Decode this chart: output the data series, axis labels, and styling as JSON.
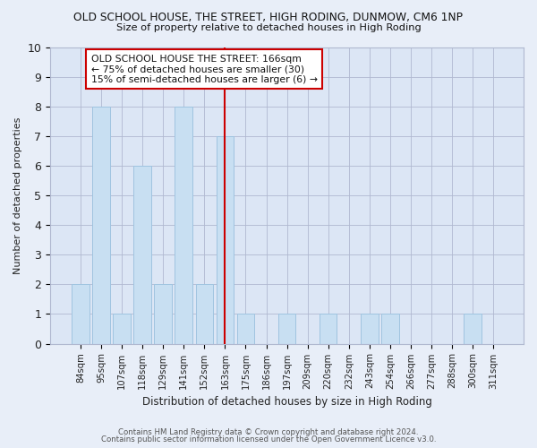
{
  "title": "OLD SCHOOL HOUSE, THE STREET, HIGH RODING, DUNMOW, CM6 1NP",
  "subtitle": "Size of property relative to detached houses in High Roding",
  "xlabel": "Distribution of detached houses by size in High Roding",
  "ylabel": "Number of detached properties",
  "categories": [
    "84sqm",
    "95sqm",
    "107sqm",
    "118sqm",
    "129sqm",
    "141sqm",
    "152sqm",
    "163sqm",
    "175sqm",
    "186sqm",
    "197sqm",
    "209sqm",
    "220sqm",
    "232sqm",
    "243sqm",
    "254sqm",
    "266sqm",
    "277sqm",
    "288sqm",
    "300sqm",
    "311sqm"
  ],
  "values": [
    2,
    8,
    1,
    6,
    2,
    8,
    2,
    7,
    1,
    0,
    1,
    0,
    1,
    0,
    1,
    1,
    0,
    0,
    0,
    1,
    0
  ],
  "bar_color": "#c8dff2",
  "bar_edgecolor": "#a0c4e0",
  "marker_index": 7,
  "marker_color": "#cc0000",
  "ylim": [
    0,
    10
  ],
  "yticks": [
    0,
    1,
    2,
    3,
    4,
    5,
    6,
    7,
    8,
    9,
    10
  ],
  "annotation_line1": "OLD SCHOOL HOUSE THE STREET: 166sqm",
  "annotation_line2": "← 75% of detached houses are smaller (30)",
  "annotation_line3": "15% of semi-detached houses are larger (6) →",
  "footer1": "Contains HM Land Registry data © Crown copyright and database right 2024.",
  "footer2": "Contains public sector information licensed under the Open Government Licence v3.0.",
  "bg_color": "#e8eef8",
  "plot_bg_color": "#dce6f5"
}
